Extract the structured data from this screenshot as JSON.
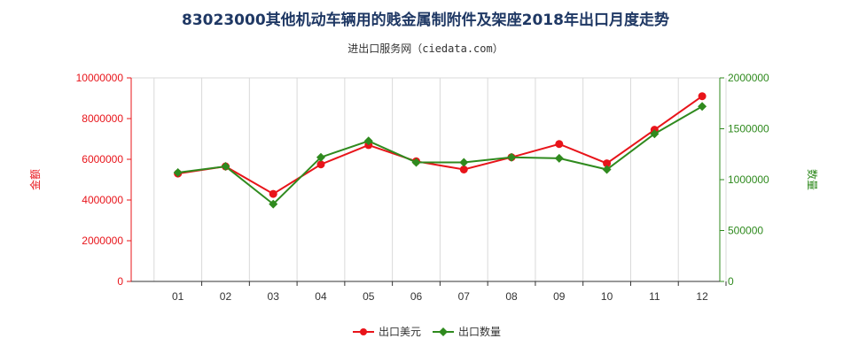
{
  "title": "83023000其他机动车辆用的贱金属制附件及架座2018年出口月度走势",
  "subtitle": "进出口服务网（ciedata.com）",
  "colors": {
    "left_axis": "#e8141a",
    "right_axis": "#2f8a1e",
    "series_usd": "#e8141a",
    "series_qty": "#2f8a1e",
    "grid": "#d9d9d9"
  },
  "chart_data": {
    "type": "line",
    "categories": [
      "01",
      "02",
      "03",
      "04",
      "05",
      "06",
      "07",
      "08",
      "09",
      "10",
      "11",
      "12"
    ],
    "y_left": {
      "label": "金额",
      "ylim": [
        0,
        10000000
      ],
      "ticks": [
        "0",
        "2000000",
        "4000000",
        "6000000",
        "8000000",
        "10000000"
      ]
    },
    "y_right": {
      "label": "数量",
      "ylim": [
        0,
        2000000
      ],
      "ticks": [
        "0",
        "500000",
        "1000000",
        "1500000",
        "2000000"
      ]
    },
    "series": [
      {
        "name": "出口美元",
        "axis": "left",
        "values": [
          5300000,
          5650000,
          4300000,
          5750000,
          6700000,
          5900000,
          5500000,
          6100000,
          6750000,
          5800000,
          7450000,
          9100000
        ]
      },
      {
        "name": "出口数量",
        "axis": "right",
        "values": [
          1070000,
          1130000,
          760000,
          1220000,
          1380000,
          1170000,
          1170000,
          1220000,
          1210000,
          1100000,
          1450000,
          1720000
        ]
      }
    ],
    "grid": "vertical",
    "legend_position": "bottom-center"
  }
}
